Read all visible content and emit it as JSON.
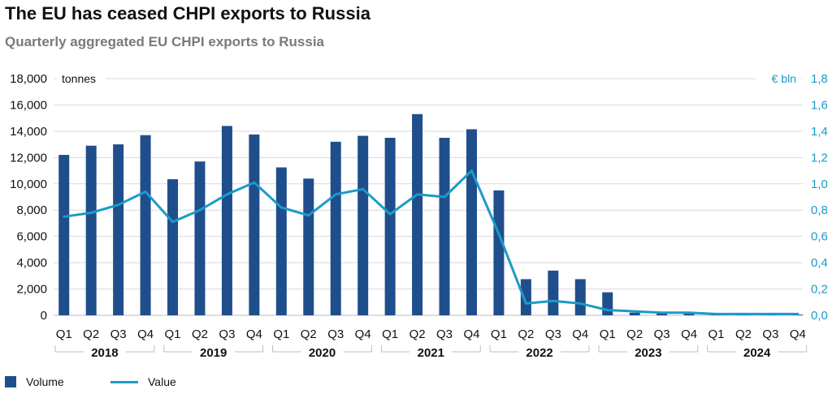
{
  "chart_data": {
    "type": "bar",
    "title": "The EU has ceased CHPI exports to Russia",
    "subtitle": "Quarterly aggregated EU CHPI exports to Russia",
    "categories": [
      "Q1",
      "Q2",
      "Q3",
      "Q4",
      "Q1",
      "Q2",
      "Q3",
      "Q4",
      "Q1",
      "Q2",
      "Q3",
      "Q4",
      "Q1",
      "Q2",
      "Q3",
      "Q4",
      "Q1",
      "Q2",
      "Q3",
      "Q4",
      "Q1",
      "Q2",
      "Q3",
      "Q4",
      "Q1",
      "Q2",
      "Q3",
      "Q4"
    ],
    "years": [
      "2018",
      "2019",
      "2020",
      "2021",
      "2022",
      "2023",
      "2024"
    ],
    "series": [
      {
        "name": "Volume",
        "type": "bar",
        "axis": "left",
        "color": "#1f4e8c",
        "values": [
          12200,
          12900,
          13000,
          13700,
          10350,
          11700,
          14400,
          13750,
          11250,
          10400,
          13200,
          13650,
          13500,
          15300,
          13500,
          14150,
          9500,
          2750,
          3400,
          2750,
          1750,
          200,
          150,
          150,
          50,
          50,
          50,
          50
        ]
      },
      {
        "name": "Value",
        "type": "line",
        "axis": "right",
        "color": "#1b9bc7",
        "values": [
          0.75,
          0.78,
          0.84,
          0.94,
          0.71,
          0.8,
          0.92,
          1.01,
          0.82,
          0.76,
          0.92,
          0.96,
          0.77,
          0.92,
          0.9,
          1.1,
          0.62,
          0.09,
          0.11,
          0.09,
          0.04,
          0.03,
          0.02,
          0.02,
          0.01,
          0.01,
          0.01,
          0.01
        ]
      }
    ],
    "y_left": {
      "label": "tonnes",
      "min": 0,
      "max": 18000,
      "ticks": [
        "0",
        "2,000",
        "4,000",
        "6,000",
        "8,000",
        "10,000",
        "12,000",
        "14,000",
        "16,000",
        "18,000"
      ]
    },
    "y_right": {
      "label": "€ bln",
      "min": 0,
      "max": 1.8,
      "ticks": [
        "0,0",
        "0,2",
        "0,4",
        "0,6",
        "0,8",
        "1,0",
        "1,2",
        "1,4",
        "1,6",
        "1,8"
      ]
    },
    "grid": true,
    "legend_position": "bottom-left"
  }
}
